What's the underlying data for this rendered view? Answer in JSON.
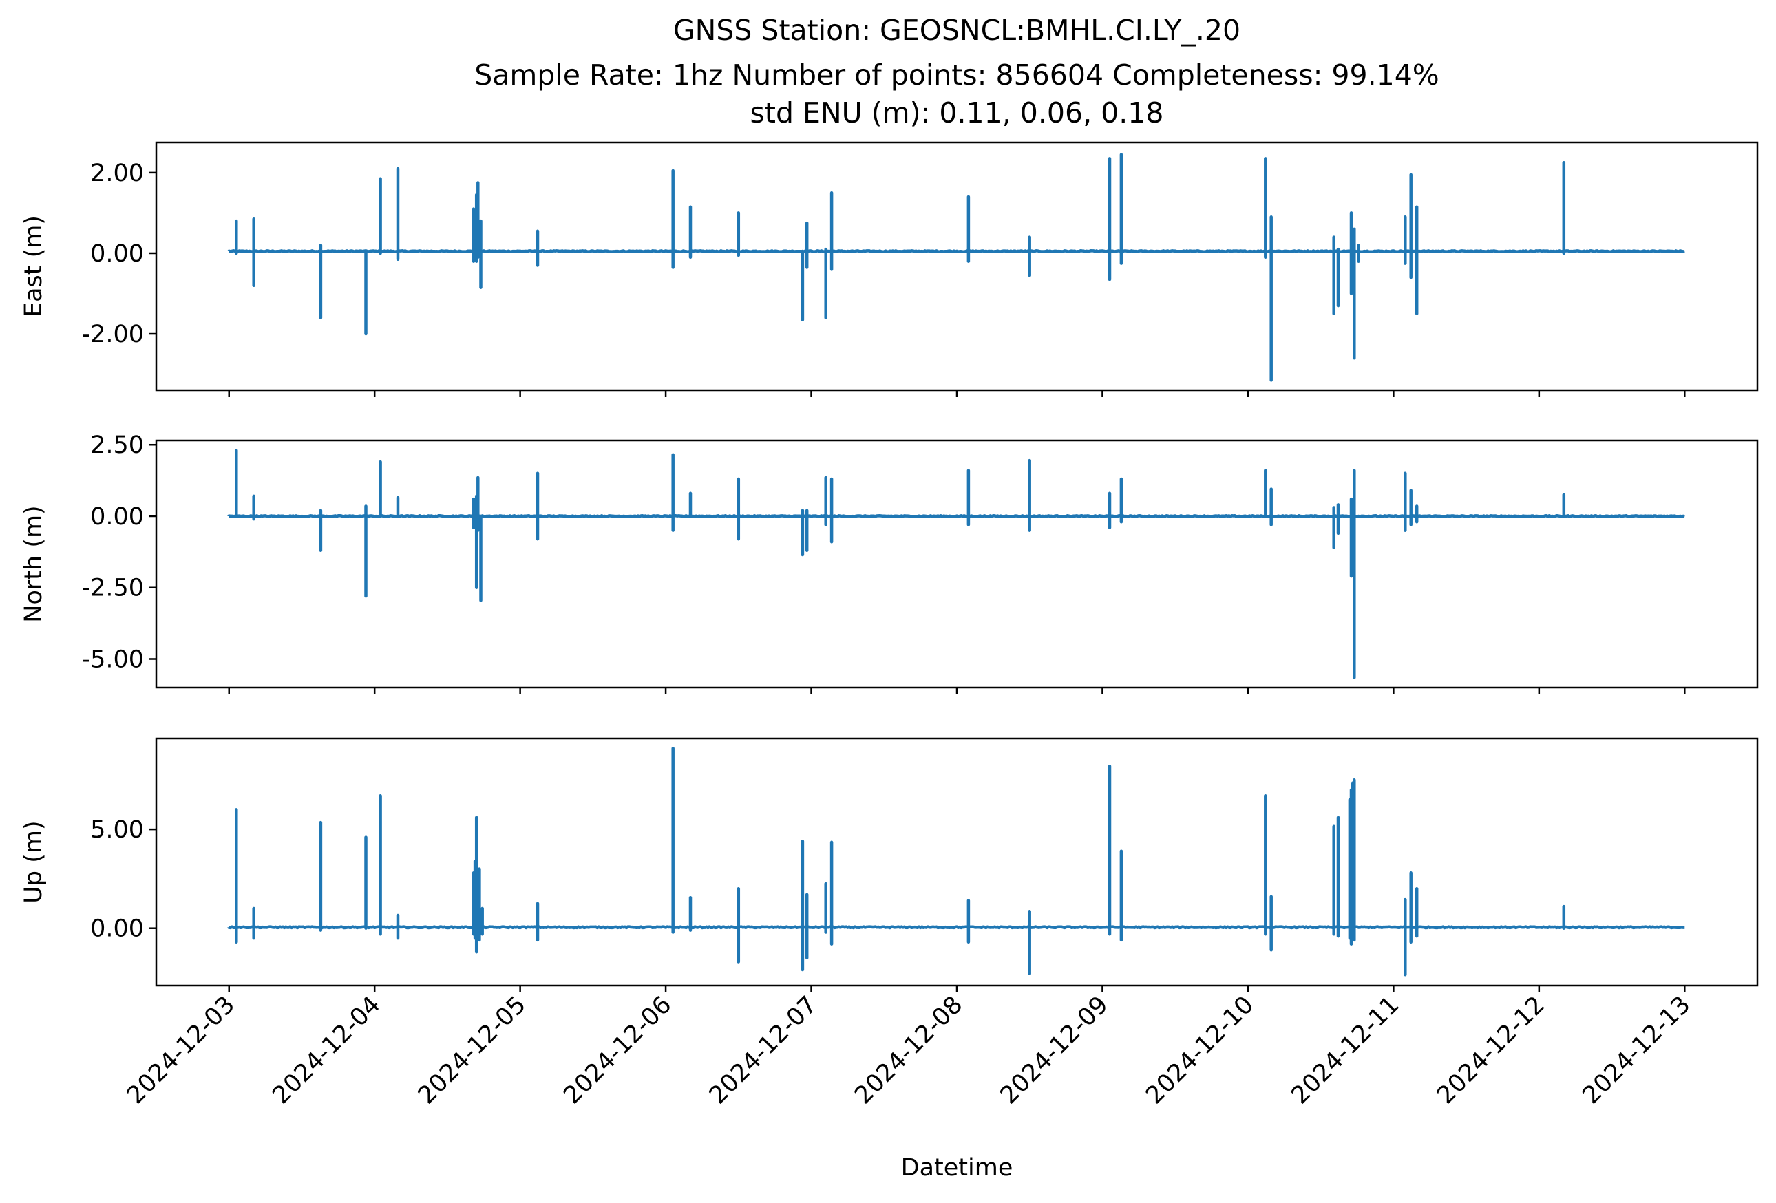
{
  "figure": {
    "title_line1": "GNSS Station: GEOSNCL:BMHL.CI.LY_.20",
    "title_line2": "Sample Rate: 1hz   Number of points: 856604    Completeness:  99.14%",
    "title_line3": "std ENU (m):  0.11, 0.06, 0.18"
  },
  "chart_data": {
    "type": "line",
    "xlabel": "Datetime",
    "x_ticks": [
      "2024-12-03",
      "2024-12-04",
      "2024-12-05",
      "2024-12-06",
      "2024-12-07",
      "2024-12-08",
      "2024-12-09",
      "2024-12-10",
      "2024-12-11",
      "2024-12-12",
      "2024-12-13"
    ],
    "x_range_days": [
      -0.5,
      10.5
    ],
    "x_origin_date": "2024-12-03",
    "x_end_day": 10.0,
    "color": "#1f77b4",
    "panels": [
      {
        "ylabel": "East (m)",
        "ylim": [
          -3.4,
          2.75
        ],
        "yticks": [
          2.0,
          0.0,
          -2.0
        ],
        "ytick_labels": [
          "2.00",
          "0.00",
          "-2.00"
        ],
        "baseline": 0.05,
        "spikes": [
          {
            "t": 0.05,
            "max": 0.8,
            "min": 0.0
          },
          {
            "t": 0.17,
            "max": 0.85,
            "min": -0.8
          },
          {
            "t": 0.63,
            "max": 0.2,
            "min": -1.6
          },
          {
            "t": 0.94,
            "max": 0.0,
            "min": -2.0
          },
          {
            "t": 1.04,
            "max": 1.85,
            "min": 0.0
          },
          {
            "t": 1.16,
            "max": 2.1,
            "min": -0.15
          },
          {
            "t": 1.68,
            "max": 1.1,
            "min": -0.2
          },
          {
            "t": 1.7,
            "max": 1.45,
            "min": -0.2
          },
          {
            "t": 1.71,
            "max": 1.75,
            "min": -0.1
          },
          {
            "t": 1.73,
            "max": 0.8,
            "min": -0.85
          },
          {
            "t": 2.12,
            "max": 0.55,
            "min": -0.3
          },
          {
            "t": 3.05,
            "max": 2.05,
            "min": -0.35
          },
          {
            "t": 3.17,
            "max": 1.15,
            "min": -0.1
          },
          {
            "t": 3.5,
            "max": 1.0,
            "min": -0.05
          },
          {
            "t": 3.94,
            "max": 0.0,
            "min": -1.65
          },
          {
            "t": 3.97,
            "max": 0.75,
            "min": -0.35
          },
          {
            "t": 4.1,
            "max": 0.1,
            "min": -1.6
          },
          {
            "t": 4.14,
            "max": 1.5,
            "min": -0.4
          },
          {
            "t": 5.08,
            "max": 1.4,
            "min": -0.2
          },
          {
            "t": 5.5,
            "max": 0.4,
            "min": -0.55
          },
          {
            "t": 6.05,
            "max": 2.35,
            "min": -0.65
          },
          {
            "t": 6.13,
            "max": 2.45,
            "min": -0.25
          },
          {
            "t": 7.12,
            "max": 2.35,
            "min": -0.1
          },
          {
            "t": 7.16,
            "max": 0.9,
            "min": -3.15
          },
          {
            "t": 7.59,
            "max": 0.4,
            "min": -1.5
          },
          {
            "t": 7.62,
            "max": 0.1,
            "min": -1.3
          },
          {
            "t": 7.71,
            "max": 1.0,
            "min": -1.0
          },
          {
            "t": 7.73,
            "max": 0.6,
            "min": -2.6
          },
          {
            "t": 7.76,
            "max": 0.2,
            "min": -0.2
          },
          {
            "t": 8.08,
            "max": 0.9,
            "min": -0.25
          },
          {
            "t": 8.12,
            "max": 1.95,
            "min": -0.6
          },
          {
            "t": 8.16,
            "max": 1.15,
            "min": -1.5
          },
          {
            "t": 9.17,
            "max": 2.25,
            "min": 0.0
          }
        ]
      },
      {
        "ylabel": "North (m)",
        "ylim": [
          -6.0,
          2.65
        ],
        "yticks": [
          2.5,
          0.0,
          -2.5,
          -5.0
        ],
        "ytick_labels": [
          "2.50",
          "0.00",
          "-2.50",
          "-5.00"
        ],
        "baseline": 0.0,
        "spikes": [
          {
            "t": 0.05,
            "max": 2.3,
            "min": 0.0
          },
          {
            "t": 0.17,
            "max": 0.7,
            "min": -0.1
          },
          {
            "t": 0.63,
            "max": 0.2,
            "min": -1.2
          },
          {
            "t": 0.94,
            "max": 0.35,
            "min": -2.8
          },
          {
            "t": 1.04,
            "max": 1.9,
            "min": 0.0
          },
          {
            "t": 1.16,
            "max": 0.65,
            "min": 0.0
          },
          {
            "t": 1.68,
            "max": 0.6,
            "min": -0.4
          },
          {
            "t": 1.7,
            "max": 0.7,
            "min": -2.5
          },
          {
            "t": 1.71,
            "max": 1.35,
            "min": -0.5
          },
          {
            "t": 1.73,
            "max": 0.0,
            "min": -2.95
          },
          {
            "t": 2.12,
            "max": 1.5,
            "min": -0.8
          },
          {
            "t": 3.05,
            "max": 2.15,
            "min": -0.5
          },
          {
            "t": 3.17,
            "max": 0.8,
            "min": 0.0
          },
          {
            "t": 3.5,
            "max": 1.3,
            "min": -0.8
          },
          {
            "t": 3.94,
            "max": 0.2,
            "min": -1.35
          },
          {
            "t": 3.97,
            "max": 0.2,
            "min": -1.2
          },
          {
            "t": 4.1,
            "max": 1.35,
            "min": -0.3
          },
          {
            "t": 4.14,
            "max": 1.3,
            "min": -0.9
          },
          {
            "t": 5.08,
            "max": 1.6,
            "min": -0.3
          },
          {
            "t": 5.5,
            "max": 1.95,
            "min": -0.5
          },
          {
            "t": 6.05,
            "max": 0.8,
            "min": -0.4
          },
          {
            "t": 6.13,
            "max": 1.3,
            "min": -0.2
          },
          {
            "t": 7.12,
            "max": 1.6,
            "min": 0.0
          },
          {
            "t": 7.16,
            "max": 0.95,
            "min": -0.3
          },
          {
            "t": 7.59,
            "max": 0.3,
            "min": -1.1
          },
          {
            "t": 7.62,
            "max": 0.4,
            "min": -0.6
          },
          {
            "t": 7.71,
            "max": 0.6,
            "min": -2.1
          },
          {
            "t": 7.73,
            "max": 1.6,
            "min": -5.65
          },
          {
            "t": 8.08,
            "max": 1.5,
            "min": -0.5
          },
          {
            "t": 8.12,
            "max": 0.9,
            "min": -0.3
          },
          {
            "t": 8.16,
            "max": 0.35,
            "min": -0.2
          },
          {
            "t": 9.17,
            "max": 0.75,
            "min": 0.0
          }
        ]
      },
      {
        "ylabel": "Up (m)",
        "ylim": [
          -2.9,
          9.6
        ],
        "yticks": [
          5.0,
          0.0
        ],
        "ytick_labels": [
          "5.00",
          "0.00"
        ],
        "baseline": 0.05,
        "spikes": [
          {
            "t": 0.05,
            "max": 6.0,
            "min": -0.7
          },
          {
            "t": 0.17,
            "max": 1.0,
            "min": -0.5
          },
          {
            "t": 0.63,
            "max": 5.35,
            "min": -0.1
          },
          {
            "t": 0.94,
            "max": 4.6,
            "min": 0.0
          },
          {
            "t": 1.04,
            "max": 6.7,
            "min": -0.3
          },
          {
            "t": 1.16,
            "max": 0.65,
            "min": -0.5
          },
          {
            "t": 1.68,
            "max": 2.8,
            "min": -0.3
          },
          {
            "t": 1.69,
            "max": 3.4,
            "min": -0.5
          },
          {
            "t": 1.7,
            "max": 5.6,
            "min": -1.2
          },
          {
            "t": 1.72,
            "max": 3.0,
            "min": -0.6
          },
          {
            "t": 1.74,
            "max": 1.0,
            "min": -0.3
          },
          {
            "t": 2.12,
            "max": 1.25,
            "min": -0.6
          },
          {
            "t": 3.05,
            "max": 9.1,
            "min": -0.2
          },
          {
            "t": 3.17,
            "max": 1.55,
            "min": -0.1
          },
          {
            "t": 3.5,
            "max": 2.0,
            "min": -1.7
          },
          {
            "t": 3.94,
            "max": 4.4,
            "min": -2.1
          },
          {
            "t": 3.97,
            "max": 1.7,
            "min": -1.5
          },
          {
            "t": 4.1,
            "max": 2.25,
            "min": -0.2
          },
          {
            "t": 4.14,
            "max": 4.35,
            "min": -0.8
          },
          {
            "t": 5.08,
            "max": 1.4,
            "min": -0.7
          },
          {
            "t": 5.5,
            "max": 0.85,
            "min": -2.3
          },
          {
            "t": 6.05,
            "max": 8.2,
            "min": -0.3
          },
          {
            "t": 6.13,
            "max": 3.9,
            "min": -0.6
          },
          {
            "t": 7.12,
            "max": 6.7,
            "min": -0.3
          },
          {
            "t": 7.16,
            "max": 1.6,
            "min": -1.1
          },
          {
            "t": 7.59,
            "max": 5.15,
            "min": -0.3
          },
          {
            "t": 7.62,
            "max": 5.6,
            "min": -0.4
          },
          {
            "t": 7.7,
            "max": 6.5,
            "min": -0.5
          },
          {
            "t": 7.71,
            "max": 7.0,
            "min": -0.8
          },
          {
            "t": 7.72,
            "max": 7.35,
            "min": -0.2
          },
          {
            "t": 7.73,
            "max": 7.5,
            "min": -0.6
          },
          {
            "t": 8.08,
            "max": 1.45,
            "min": -2.35
          },
          {
            "t": 8.12,
            "max": 2.8,
            "min": -0.7
          },
          {
            "t": 8.16,
            "max": 2.0,
            "min": -0.4
          },
          {
            "t": 9.17,
            "max": 1.1,
            "min": 0.0
          }
        ]
      }
    ]
  }
}
